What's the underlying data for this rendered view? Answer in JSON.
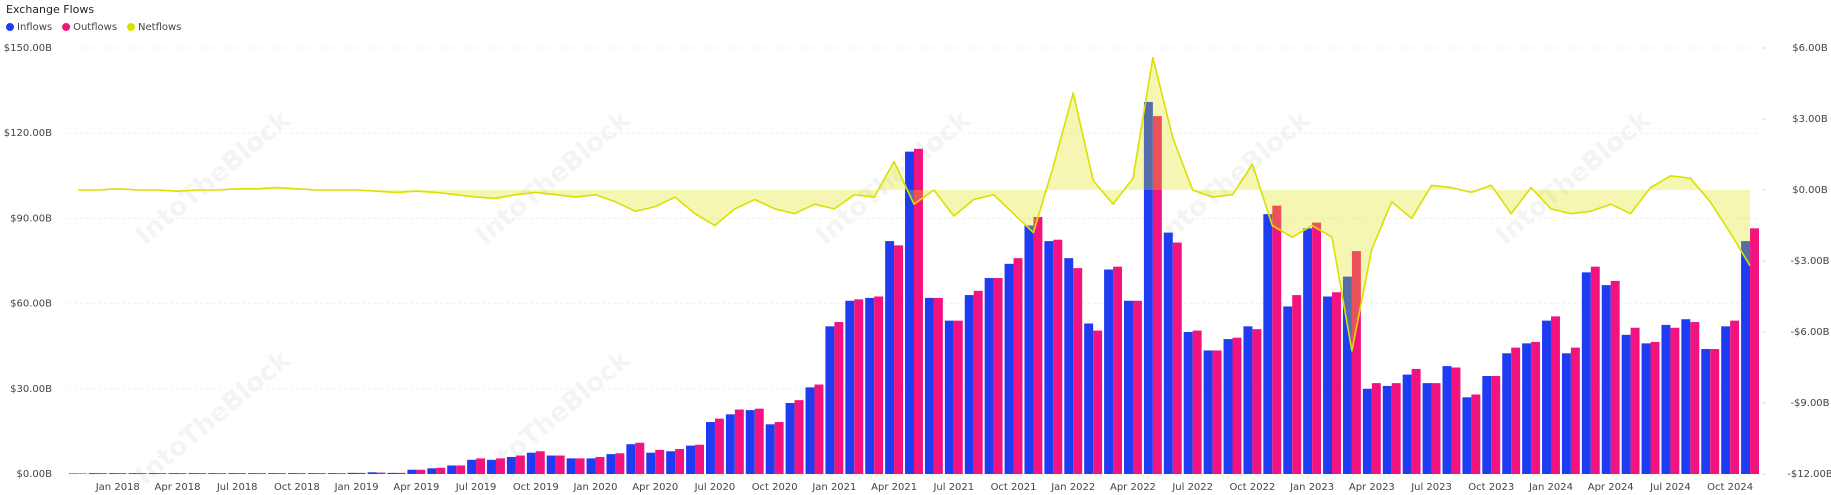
{
  "chart_data": {
    "type": "bar_line",
    "title": "Exchange Flows",
    "watermark": "IntoTheBlock",
    "categories": [
      null,
      null,
      "Jan 2018",
      null,
      null,
      "Apr 2018",
      null,
      null,
      "Jul 2018",
      null,
      null,
      "Oct 2018",
      null,
      null,
      "Jan 2019",
      null,
      null,
      "Apr 2019",
      null,
      null,
      "Jul 2019",
      null,
      null,
      "Oct 2019",
      null,
      null,
      "Jan 2020",
      null,
      null,
      "Apr 2020",
      null,
      null,
      "Jul 2020",
      null,
      null,
      "Oct 2020",
      null,
      null,
      "Jan 2021",
      null,
      null,
      "Apr 2021",
      null,
      null,
      "Jul 2021",
      null,
      null,
      "Oct 2021",
      null,
      null,
      "Jan 2022",
      null,
      null,
      "Apr 2022",
      null,
      null,
      "Jul 2022",
      null,
      null,
      "Oct 2022",
      null,
      null,
      "Jan 2023",
      null,
      null,
      "Apr 2023",
      null,
      null,
      "Jul 2023",
      null,
      null,
      "Oct 2023",
      null,
      null,
      "Jan 2024",
      null,
      null,
      "Apr 2024",
      null,
      null,
      "Jul 2024",
      null,
      null,
      "Oct 2024",
      null
    ],
    "series": [
      {
        "name": "Inflows",
        "color": "#1f3cf2",
        "kind": "bar",
        "values": [
          0.2,
          0.3,
          0.3,
          0.3,
          0.3,
          0.3,
          0.3,
          0.3,
          0.3,
          0.3,
          0.3,
          0.3,
          0.3,
          0.3,
          0.4,
          0.6,
          0.4,
          1.5,
          2,
          3,
          5,
          5,
          6,
          7.5,
          6.5,
          5.5,
          5.5,
          7,
          10.5,
          7.5,
          8,
          10,
          18.3,
          21,
          22.5,
          17.5,
          25,
          30.5,
          52,
          61,
          62,
          82,
          113.5,
          62,
          54,
          63,
          69,
          74,
          87.5,
          82,
          76,
          53,
          72,
          61,
          131,
          85,
          50,
          43.5,
          47.5,
          52,
          91.5,
          59,
          86.5,
          62.5,
          69.5,
          30,
          31,
          35,
          32,
          38,
          27,
          34.5,
          42.5,
          46,
          54,
          42.5,
          71,
          66.5,
          49,
          46,
          52.5,
          54.5,
          44,
          52,
          82
        ]
      },
      {
        "name": "Outflows",
        "color": "#f2137f",
        "kind": "bar",
        "values": [
          0.2,
          0.3,
          0.3,
          0.3,
          0.3,
          0.3,
          0.3,
          0.3,
          0.3,
          0.3,
          0.3,
          0.3,
          0.3,
          0.3,
          0.4,
          0.5,
          0.4,
          1.5,
          2.2,
          3,
          5.5,
          5.5,
          6.5,
          8,
          6.5,
          5.5,
          6,
          7.3,
          11,
          8.5,
          8.8,
          10.3,
          19.5,
          22.7,
          23,
          18.3,
          26,
          31.5,
          53.5,
          61.5,
          62.5,
          80.5,
          114.5,
          62,
          54,
          64.5,
          69,
          76,
          90.5,
          82.5,
          72.5,
          50.5,
          73,
          61,
          126,
          81.5,
          50.5,
          43.5,
          48,
          51,
          94.5,
          63,
          88.5,
          64,
          78.5,
          32,
          32,
          37,
          32,
          37.5,
          28,
          34.5,
          44.5,
          46.5,
          55.5,
          44.5,
          73,
          68,
          51.5,
          46.5,
          51.5,
          53.5,
          44,
          54,
          86.5
        ]
      },
      {
        "name": "Netflows",
        "color": "#dbe000",
        "kind": "line",
        "axis": "y2",
        "values": [
          0,
          0,
          0.05,
          0,
          0,
          -0.05,
          0,
          0,
          0.05,
          0.05,
          0.1,
          0.05,
          0,
          0,
          0,
          -0.05,
          -0.1,
          -0.05,
          -0.1,
          -0.2,
          -0.3,
          -0.35,
          -0.2,
          -0.1,
          -0.2,
          -0.3,
          -0.2,
          -0.5,
          -0.9,
          -0.7,
          -0.3,
          -1.0,
          -1.5,
          -0.8,
          -0.4,
          -0.8,
          -1.0,
          -0.6,
          -0.8,
          -0.2,
          -0.3,
          1.2,
          -0.6,
          0,
          -1.1,
          -0.4,
          -0.2,
          -1.0,
          -1.8,
          1.0,
          4.1,
          0.4,
          -0.6,
          0.5,
          5.6,
          2.2,
          0,
          -0.3,
          -0.2,
          1.1,
          -1.5,
          -2.0,
          -1.5,
          -2.0,
          -6.8,
          -2.5,
          -0.5,
          -1.2,
          0.2,
          0.1,
          -0.1,
          0.2,
          -1.0,
          0.1,
          -0.8,
          -1.0,
          -0.9,
          -0.6,
          -1.0,
          0.1,
          0.6,
          0.5,
          -0.5,
          -1.8,
          -3.2
        ]
      }
    ],
    "ylim": [
      0,
      150
    ],
    "yticks": [
      {
        "value": 0,
        "label": "$0.00B"
      },
      {
        "value": 30,
        "label": "$30.00B"
      },
      {
        "value": 60,
        "label": "$60.00B"
      },
      {
        "value": 90,
        "label": "$90.00B"
      },
      {
        "value": 120,
        "label": "$120.00B"
      },
      {
        "value": 150,
        "label": "$150.00B"
      }
    ],
    "y2lim": [
      -12,
      6
    ],
    "y2ticks": [
      {
        "value": -12,
        "label": "-$12.00B"
      },
      {
        "value": -9,
        "label": "-$9.00B"
      },
      {
        "value": -6,
        "label": "-$6.00B"
      },
      {
        "value": -3,
        "label": "-$3.00B"
      },
      {
        "value": 0,
        "label": "$0.00B"
      },
      {
        "value": 3,
        "label": "$3.00B"
      },
      {
        "value": 6,
        "label": "$6.00B"
      }
    ],
    "grid": true,
    "legend": "top-left"
  }
}
